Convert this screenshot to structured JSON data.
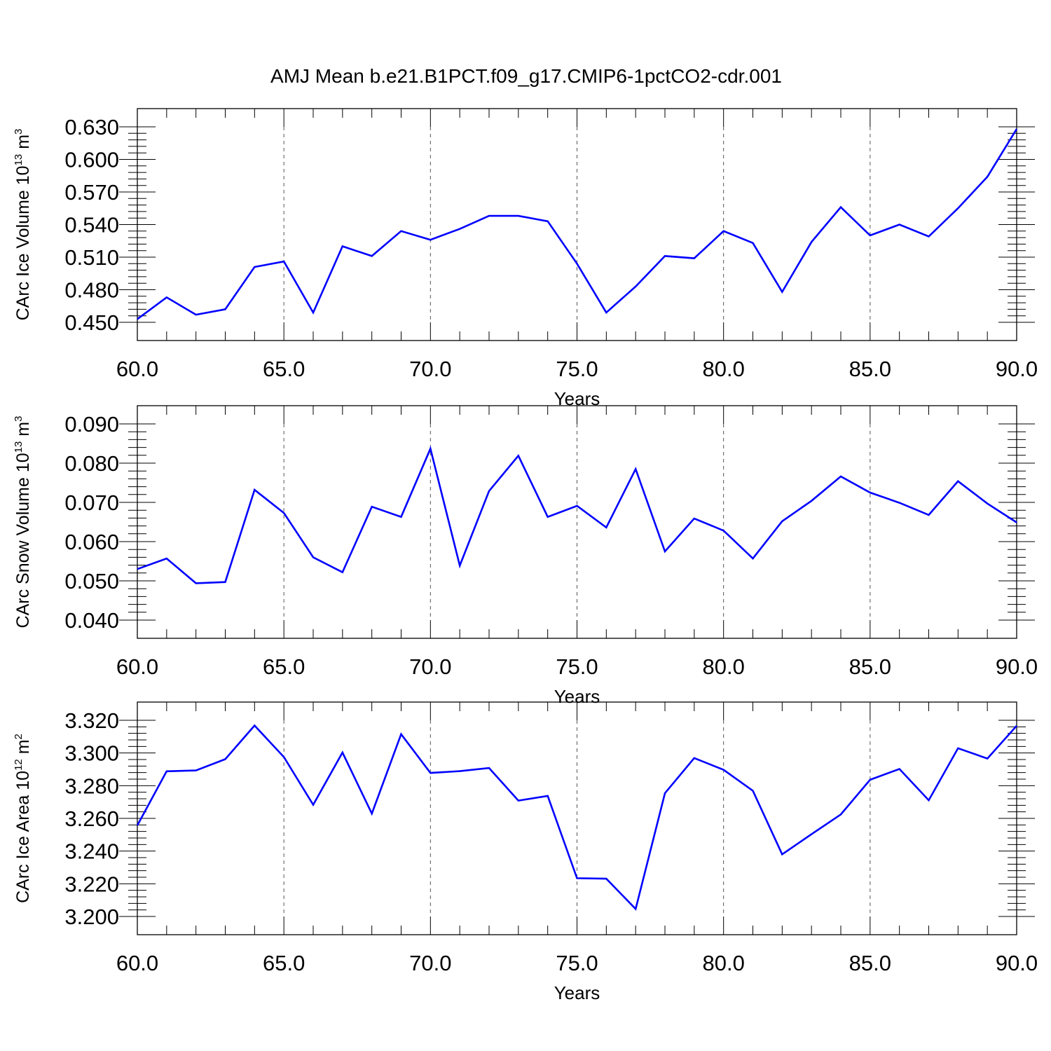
{
  "title": "AMJ Mean b.e21.B1PCT.f09_g17.CMIP6-1pctCO2-cdr.001",
  "colors": {
    "line": "#0000ff",
    "axis": "#000000",
    "grid": "#555555"
  },
  "chart_data": [
    {
      "type": "line",
      "xlabel": "Years",
      "ylabel": {
        "main": "CArc Ice Volume 10",
        "exp": "13",
        "unit": " m",
        "unit_exp": "3"
      },
      "xlim": [
        60,
        90
      ],
      "ylim": [
        0.45,
        0.63
      ],
      "xticks": [
        60,
        65,
        70,
        75,
        80,
        85,
        90
      ],
      "xtick_labels": [
        "60.0",
        "65.0",
        "70.0",
        "75.0",
        "80.0",
        "85.0",
        "90.0"
      ],
      "yticks": [
        0.45,
        0.48,
        0.51,
        0.54,
        0.57,
        0.6,
        0.63
      ],
      "ytick_labels": [
        "0.450",
        "0.480",
        "0.510",
        "0.540",
        "0.570",
        "0.600",
        "0.630"
      ],
      "grid": "vertical dashed at major x ticks",
      "x": [
        60,
        61,
        62,
        63,
        64,
        65,
        66,
        67,
        68,
        69,
        70,
        71,
        72,
        73,
        74,
        75,
        76,
        77,
        78,
        79,
        80,
        81,
        82,
        83,
        84,
        85,
        86,
        87,
        88,
        89,
        90
      ],
      "series": [
        {
          "values": [
            0.453,
            0.473,
            0.457,
            0.462,
            0.501,
            0.506,
            0.459,
            0.52,
            0.511,
            0.534,
            0.526,
            0.536,
            0.548,
            0.548,
            0.543,
            0.504,
            0.459,
            0.483,
            0.511,
            0.509,
            0.534,
            0.523,
            0.478,
            0.524,
            0.556,
            0.53,
            0.54,
            0.529,
            0.555,
            0.584,
            0.628
          ]
        }
      ]
    },
    {
      "type": "line",
      "xlabel": "Years",
      "ylabel": {
        "main": "CArc Snow Volume 10",
        "exp": "13",
        "unit": " m",
        "unit_exp": "3"
      },
      "xlim": [
        60,
        90
      ],
      "ylim": [
        0.04,
        0.09
      ],
      "xticks": [
        60,
        65,
        70,
        75,
        80,
        85,
        90
      ],
      "xtick_labels": [
        "60.0",
        "65.0",
        "70.0",
        "75.0",
        "80.0",
        "85.0",
        "90.0"
      ],
      "yticks": [
        0.04,
        0.05,
        0.06,
        0.07,
        0.08,
        0.09
      ],
      "ytick_labels": [
        "0.040",
        "0.050",
        "0.060",
        "0.070",
        "0.080",
        "0.090"
      ],
      "grid": "vertical dashed at major x ticks",
      "x": [
        60,
        61,
        62,
        63,
        64,
        65,
        66,
        67,
        68,
        69,
        70,
        71,
        72,
        73,
        74,
        75,
        76,
        77,
        78,
        79,
        80,
        81,
        82,
        83,
        84,
        85,
        86,
        87,
        88,
        89,
        90
      ],
      "series": [
        {
          "values": [
            0.053,
            0.0557,
            0.0494,
            0.0497,
            0.0732,
            0.0673,
            0.056,
            0.0522,
            0.0689,
            0.0663,
            0.0837,
            0.0539,
            0.0729,
            0.0819,
            0.0663,
            0.0691,
            0.0636,
            0.0785,
            0.0575,
            0.0659,
            0.0628,
            0.0557,
            0.0652,
            0.0704,
            0.0766,
            0.0725,
            0.0699,
            0.0668,
            0.0754,
            0.0697,
            0.0649
          ]
        }
      ]
    },
    {
      "type": "line",
      "xlabel": "Years",
      "ylabel": {
        "main": "CArc Ice Area 10",
        "exp": "12",
        "unit": " m",
        "unit_exp": "2"
      },
      "xlim": [
        60,
        90
      ],
      "ylim": [
        3.2,
        3.32
      ],
      "xticks": [
        60,
        65,
        70,
        75,
        80,
        85,
        90
      ],
      "xtick_labels": [
        "60.0",
        "65.0",
        "70.0",
        "75.0",
        "80.0",
        "85.0",
        "90.0"
      ],
      "yticks": [
        3.2,
        3.22,
        3.24,
        3.26,
        3.28,
        3.3,
        3.32
      ],
      "ytick_labels": [
        "3.200",
        "3.220",
        "3.240",
        "3.260",
        "3.280",
        "3.300",
        "3.320"
      ],
      "grid": "vertical dashed at major x ticks",
      "x": [
        60,
        61,
        62,
        63,
        64,
        65,
        66,
        67,
        68,
        69,
        70,
        71,
        72,
        73,
        74,
        75,
        76,
        77,
        78,
        79,
        80,
        81,
        82,
        83,
        84,
        85,
        86,
        87,
        88,
        89,
        90
      ],
      "series": [
        {
          "values": [
            3.2557,
            3.2888,
            3.2893,
            3.2962,
            3.3168,
            3.2975,
            3.2683,
            3.3003,
            3.2629,
            3.3115,
            3.2878,
            3.2889,
            3.2908,
            3.2709,
            3.2737,
            3.2234,
            3.2231,
            3.2046,
            3.2754,
            3.2969,
            3.2897,
            3.2769,
            3.238,
            3.2503,
            3.2624,
            3.2836,
            3.2902,
            3.2711,
            3.3029,
            3.2966,
            3.3166
          ]
        }
      ]
    }
  ]
}
